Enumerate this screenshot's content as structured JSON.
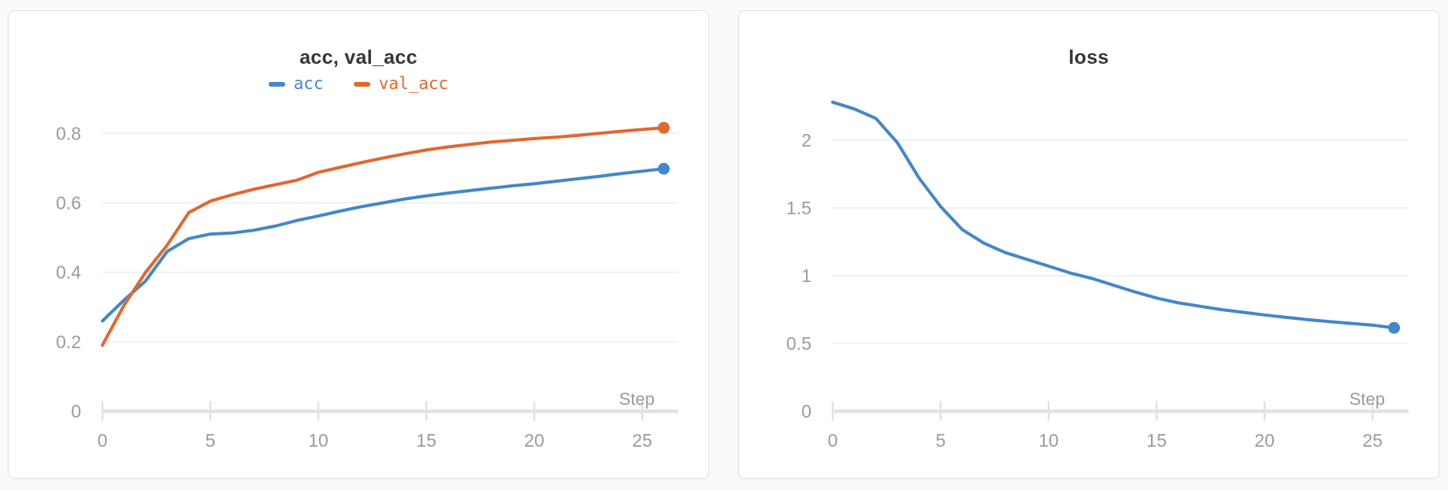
{
  "colors": {
    "acc_line": "#4287c9",
    "val_acc_line": "#e2672d",
    "loss_line": "#4287c9",
    "title_text": "#363636",
    "axis_text": "#9b9b9b",
    "gridline": "#ededed",
    "axis_line": "#e2e2e2",
    "card_border": "#e0e0e0",
    "card_background": "#ffffff",
    "page_background": "#fafafa"
  },
  "chart_data": [
    {
      "type": "line",
      "title": "acc, val_acc",
      "xlabel": "Step",
      "x_ticks": [
        0,
        5,
        10,
        15,
        20,
        25
      ],
      "y_ticks": [
        0,
        0.2,
        0.4,
        0.6,
        0.8
      ],
      "xlim": [
        0,
        26.6
      ],
      "ylim": [
        0,
        0.88
      ],
      "grid": true,
      "legend_position": "top-center",
      "x": [
        0,
        1,
        2,
        3,
        4,
        5,
        6,
        7,
        8,
        9,
        10,
        11,
        12,
        13,
        14,
        15,
        16,
        17,
        18,
        19,
        20,
        21,
        22,
        23,
        24,
        25,
        26
      ],
      "series": [
        {
          "name": "acc",
          "color": "#4287c9",
          "end_dot": true,
          "values": [
            0.26,
            0.32,
            0.375,
            0.46,
            0.497,
            0.51,
            0.513,
            0.521,
            0.533,
            0.549,
            0.562,
            0.576,
            0.589,
            0.6,
            0.611,
            0.62,
            0.628,
            0.635,
            0.642,
            0.649,
            0.655,
            0.662,
            0.669,
            0.676,
            0.684,
            0.691,
            0.698
          ]
        },
        {
          "name": "val_acc",
          "color": "#e2672d",
          "end_dot": true,
          "values": [
            0.19,
            0.305,
            0.4,
            0.478,
            0.572,
            0.605,
            0.623,
            0.639,
            0.652,
            0.665,
            0.688,
            0.702,
            0.716,
            0.729,
            0.741,
            0.752,
            0.761,
            0.768,
            0.775,
            0.78,
            0.785,
            0.789,
            0.794,
            0.8,
            0.806,
            0.811,
            0.816
          ]
        }
      ]
    },
    {
      "type": "line",
      "title": "loss",
      "xlabel": "Step",
      "x_ticks": [
        0,
        5,
        10,
        15,
        20,
        25
      ],
      "y_ticks": [
        0,
        0.5,
        1,
        1.5,
        2
      ],
      "xlim": [
        0,
        26.6
      ],
      "ylim": [
        0,
        2.255
      ],
      "grid": true,
      "legend_position": "none",
      "x": [
        0,
        1,
        2,
        3,
        4,
        5,
        6,
        7,
        8,
        9,
        10,
        11,
        12,
        13,
        14,
        15,
        16,
        17,
        18,
        19,
        20,
        21,
        22,
        23,
        24,
        25,
        26
      ],
      "series": [
        {
          "name": "loss",
          "color": "#4287c9",
          "end_dot": true,
          "values": [
            2.28,
            2.23,
            2.16,
            1.98,
            1.72,
            1.51,
            1.34,
            1.24,
            1.17,
            1.12,
            1.07,
            1.02,
            0.98,
            0.93,
            0.88,
            0.835,
            0.8,
            0.775,
            0.75,
            0.73,
            0.71,
            0.692,
            0.676,
            0.661,
            0.648,
            0.635,
            0.615
          ]
        }
      ]
    }
  ]
}
